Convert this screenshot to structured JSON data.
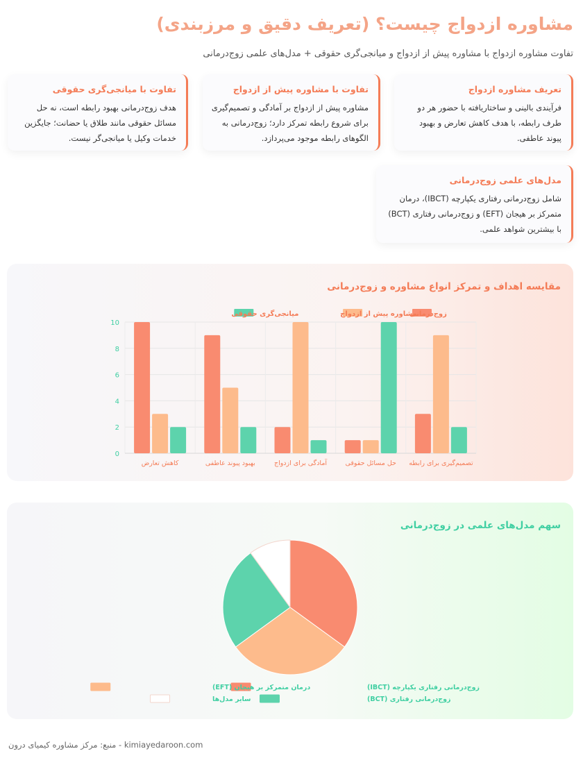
{
  "page": {
    "title": "مشاوره ازدواج چیست؟ (تعریف دقیق و مرزبندی)",
    "subtitle": "تفاوت مشاوره ازدواج با مشاوره پیش از ازدواج و میانجی‌گری حقوقی + مدل‌های علمی زوج‌درمانی",
    "footer": "kimiayedaroon.com - منبع: مرکز مشاوره کیمیای درون"
  },
  "cards": [
    {
      "title": "تعریف مشاوره ازدواج",
      "body": "فرآیندی بالینی و ساختاریافته با حضور هر دو طرف رابطه، با هدف کاهش تعارض و بهبود پیوند عاطفی."
    },
    {
      "title": "تفاوت با مشاوره پیش از ازدواج",
      "body": "مشاوره پیش از ازدواج بر آمادگی و تصمیم‌گیری برای شروع رابطه تمرکز دارد؛ زوج‌درمانی به الگوهای رابطه موجود می‌پردازد."
    },
    {
      "title": "تفاوت با میانجی‌گری حقوقی",
      "body": "هدف زوج‌درمانی بهبود رابطه است، نه حل مسائل حقوقی مانند طلاق یا حضانت؛ جایگزین خدمات وکیل یا میانجی‌گر نیست."
    },
    {
      "title": "مدل‌های علمی زوج‌درمانی",
      "body": "شامل زوج‌درمانی رفتاری یکپارچه (IBCT)، درمان متمرکز بر هیجان (EFT) و زوج‌درمانی رفتاری (BCT) با بیشترین شواهد علمی."
    }
  ],
  "colors": {
    "coral": "#f98b70",
    "peach": "#fdbb8c",
    "teal": "#5dd3ac",
    "white": "#ffffff"
  },
  "chart_data": [
    {
      "type": "bar",
      "title": "مقایسه اهداف و تمرکز انواع مشاوره و زوج‌درمانی",
      "categories": [
        "کاهش تعارض",
        "بهبود پیوند عاطفی",
        "آمادگی برای ازدواج",
        "حل مسائل حقوقی",
        "تصمیم‌گیری برای رابطه"
      ],
      "series": [
        {
          "name": "زوج‌درمانی",
          "color": "#f98b70",
          "values": [
            10,
            9,
            2,
            1,
            3
          ]
        },
        {
          "name": "مشاوره پیش از ازدواج",
          "color": "#fdbb8c",
          "values": [
            3,
            5,
            10,
            1,
            9
          ]
        },
        {
          "name": "میانجی‌گری حقوقی",
          "color": "#5dd3ac",
          "values": [
            2,
            2,
            1,
            10,
            2
          ]
        }
      ],
      "ylim": [
        0,
        10
      ],
      "yticks": [
        0,
        2,
        4,
        6,
        8,
        10
      ],
      "grid": true,
      "legend": "top-center"
    },
    {
      "type": "pie",
      "title": "سهم مدل‌های علمی در زوج‌درمانی",
      "labels": [
        "زوج‌درمانی رفتاری یکپارچه (IBCT)",
        "درمان متمرکز بر هیجان (EFT)",
        "زوج‌درمانی رفتاری (BCT)",
        "سایر مدل‌ها"
      ],
      "values": [
        35,
        30,
        25,
        10
      ],
      "colors": [
        "#f98b70",
        "#fdbb8c",
        "#5dd3ac",
        "#ffffff"
      ],
      "legend": "bottom"
    }
  ]
}
